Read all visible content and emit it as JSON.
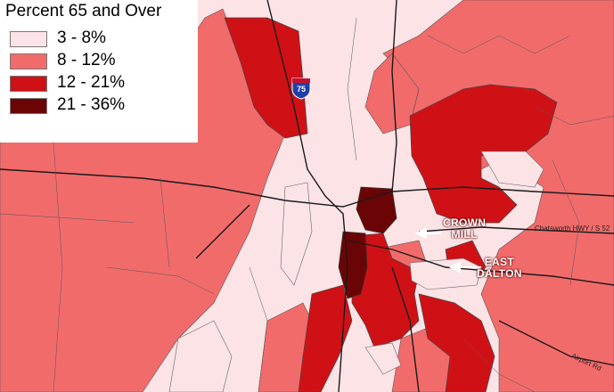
{
  "legend": {
    "title": "Percent 65 and Over",
    "classes": [
      {
        "label": "3 - 8%",
        "color": "#fbe3e6"
      },
      {
        "label": "8 - 12%",
        "color": "#f26b6b"
      },
      {
        "label": "12 - 21%",
        "color": "#cf1116"
      },
      {
        "label": "21 - 36%",
        "color": "#6b0505"
      }
    ]
  },
  "places": {
    "crown_mill": "CROWN\nMILL",
    "east_dalton": "EAST\nDALTON"
  },
  "interstate": {
    "number": "75",
    "color": "#1f3fa8"
  },
  "roads": {
    "chatsworth": "Chatsworth HWY / S 52",
    "airport": "Airport Rd"
  }
}
